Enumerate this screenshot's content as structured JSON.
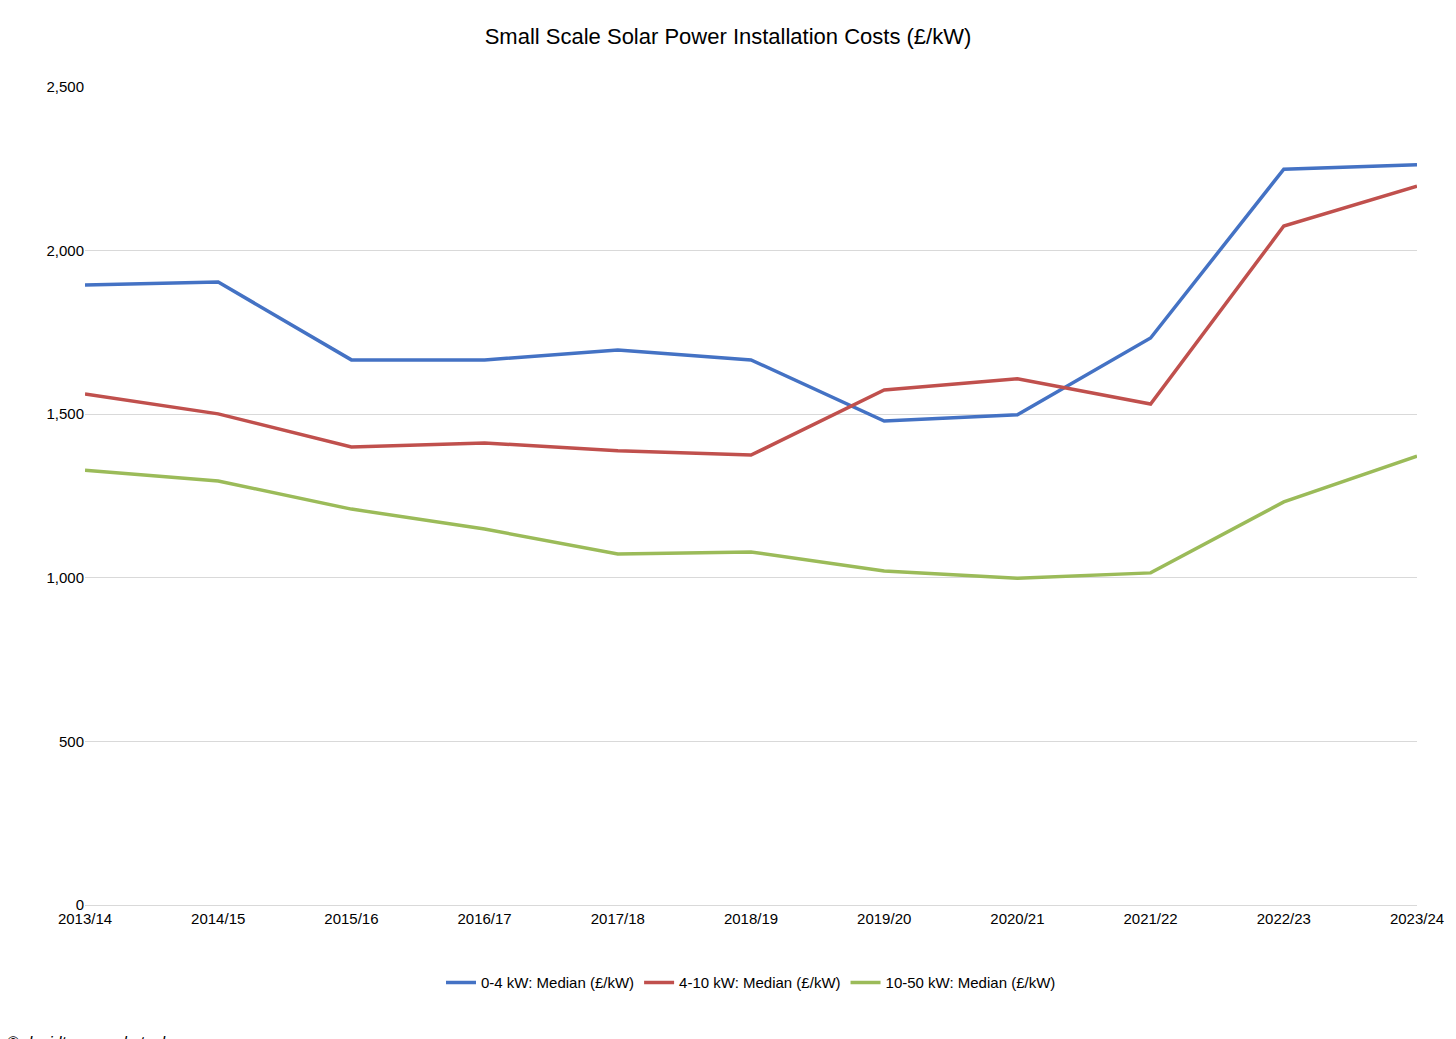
{
  "chart_data": {
    "type": "line",
    "title": "Small Scale Solar Power Installation Costs (£/kW)",
    "categories": [
      "2013/14",
      "2014/15",
      "2015/16",
      "2016/17",
      "2017/18",
      "2018/19",
      "2019/20",
      "2020/21",
      "2021/22",
      "2022/23",
      "2023/24"
    ],
    "series": [
      {
        "name": "0-4 kW: Median (£/kW)",
        "color": "#4472c4",
        "values": [
          1895,
          1904,
          1666,
          1666,
          1696,
          1666,
          1479,
          1498,
          1733,
          2249,
          2262
        ]
      },
      {
        "name": "4-10 kW: Median (£/kW)",
        "color": "#c0504d",
        "values": [
          1562,
          1501,
          1400,
          1412,
          1388,
          1375,
          1574,
          1608,
          1531,
          2075,
          2197
        ]
      },
      {
        "name": "10-50 kW: Median (£/kW)",
        "color": "#9bbb59",
        "values": [
          1329,
          1296,
          1210,
          1149,
          1073,
          1079,
          1021,
          999,
          1015,
          1232,
          1372
        ]
      }
    ],
    "ylim": [
      0,
      2500
    ],
    "yticks": [
      0,
      500,
      {
        "value": 1000,
        "label": "1,000"
      },
      {
        "value": 1500,
        "label": "1,500"
      },
      {
        "value": 2000,
        "label": "2,000"
      },
      {
        "value": 2500,
        "label": "2,500"
      }
    ],
    "grid": true,
    "legend": "bottom",
    "annotations": [
      "© davidturver.substack.com"
    ]
  }
}
